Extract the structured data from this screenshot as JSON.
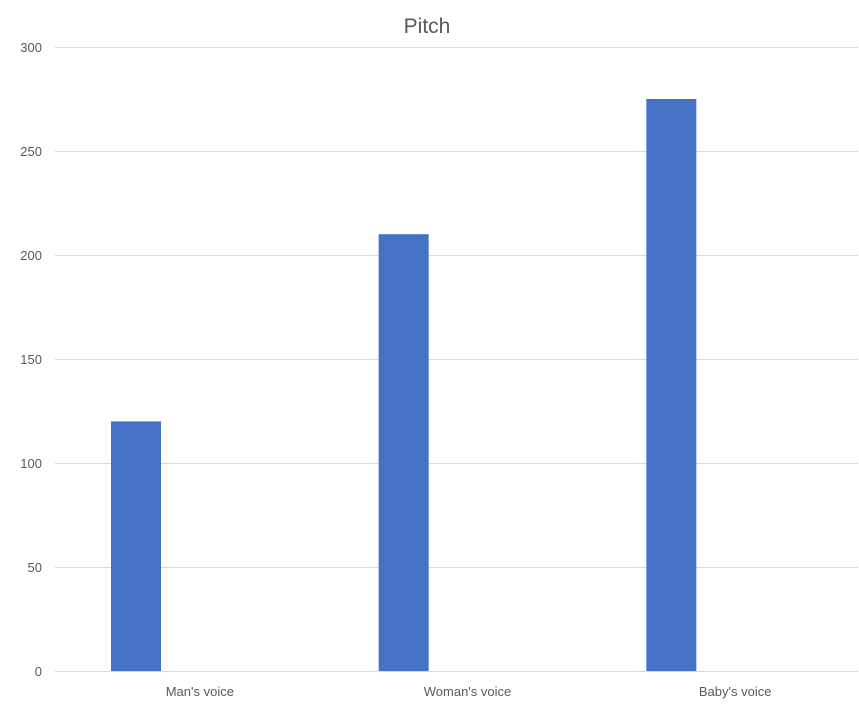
{
  "chart_data": {
    "type": "bar",
    "title": "Pitch",
    "categories": [
      "Man's voice",
      "Woman's voice",
      "Baby's voice"
    ],
    "series": [
      {
        "values": [
          120,
          210,
          275
        ],
        "color": "#4472c4"
      }
    ],
    "ylim": [
      0,
      300
    ],
    "yticks": [
      0,
      50,
      100,
      150,
      200,
      250,
      300
    ],
    "grid": true,
    "legend": "none"
  }
}
